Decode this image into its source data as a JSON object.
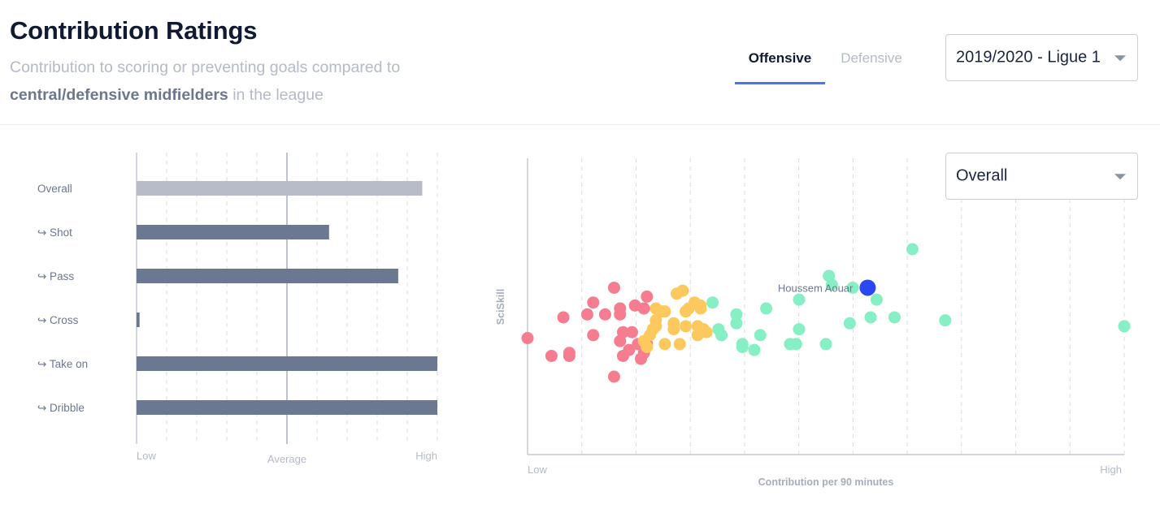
{
  "header": {
    "title": "Contribution Ratings",
    "subtitle_pre": "Contribution to scoring or preventing goals compared to",
    "subtitle_strong": "central/defensive midfielders",
    "subtitle_post": "in the league"
  },
  "tabs": [
    {
      "label": "Offensive",
      "active": true
    },
    {
      "label": "Defensive",
      "active": false
    }
  ],
  "season_select": {
    "value": "2019/2020 - Ligue 1"
  },
  "metric_select": {
    "value": "Overall"
  },
  "colors": {
    "overall_bar": "#b7bcc8",
    "sub_bar": "#6b7891",
    "low": "#f67d8f",
    "mid": "#fdc95f",
    "high": "#86efc3",
    "highlight": "#2c46f0"
  },
  "chart_data": [
    {
      "type": "bar",
      "orientation": "horizontal",
      "categories": [
        "Overall",
        "↪ Shot",
        "↪ Pass",
        "↪ Cross",
        "↪ Take on",
        "↪ Dribble"
      ],
      "values": [
        0.95,
        0.64,
        0.87,
        0.01,
        1.0,
        1.0
      ],
      "xlim": [
        0,
        1
      ],
      "reference_value": 0.5,
      "x_ticks": {
        "low": "Low",
        "average": "Average",
        "high": "High"
      },
      "grid": true
    },
    {
      "type": "scatter",
      "xlabel": "Contribution per 90 minutes",
      "ylabel": "SciSkill",
      "x_ticks": {
        "low": "Low",
        "high": "High"
      },
      "xlim": [
        0,
        1
      ],
      "ylim": [
        0,
        1
      ],
      "grid": true,
      "highlight": {
        "name": "Houssem Aouar",
        "x": 0.57,
        "y": 0.56
      },
      "points": [
        {
          "x": 0.0,
          "y": 0.39,
          "g": "low"
        },
        {
          "x": 0.04,
          "y": 0.33,
          "g": "low"
        },
        {
          "x": 0.06,
          "y": 0.46,
          "g": "low"
        },
        {
          "x": 0.07,
          "y": 0.33,
          "g": "low"
        },
        {
          "x": 0.07,
          "y": 0.34,
          "g": "low"
        },
        {
          "x": 0.1,
          "y": 0.47,
          "g": "low"
        },
        {
          "x": 0.11,
          "y": 0.51,
          "g": "low"
        },
        {
          "x": 0.11,
          "y": 0.4,
          "g": "low"
        },
        {
          "x": 0.13,
          "y": 0.47,
          "g": "low"
        },
        {
          "x": 0.145,
          "y": 0.56,
          "g": "low"
        },
        {
          "x": 0.145,
          "y": 0.26,
          "g": "low"
        },
        {
          "x": 0.155,
          "y": 0.49,
          "g": "low"
        },
        {
          "x": 0.155,
          "y": 0.47,
          "g": "low"
        },
        {
          "x": 0.155,
          "y": 0.38,
          "g": "low"
        },
        {
          "x": 0.16,
          "y": 0.41,
          "g": "low"
        },
        {
          "x": 0.16,
          "y": 0.33,
          "g": "low"
        },
        {
          "x": 0.17,
          "y": 0.35,
          "g": "low"
        },
        {
          "x": 0.175,
          "y": 0.41,
          "g": "low"
        },
        {
          "x": 0.18,
          "y": 0.5,
          "g": "low"
        },
        {
          "x": 0.185,
          "y": 0.37,
          "g": "low"
        },
        {
          "x": 0.19,
          "y": 0.32,
          "g": "low"
        },
        {
          "x": 0.195,
          "y": 0.34,
          "g": "low"
        },
        {
          "x": 0.195,
          "y": 0.49,
          "g": "low"
        },
        {
          "x": 0.2,
          "y": 0.53,
          "g": "low"
        },
        {
          "x": 0.2,
          "y": 0.37,
          "g": "low"
        },
        {
          "x": 0.195,
          "y": 0.38,
          "g": "mid"
        },
        {
          "x": 0.2,
          "y": 0.36,
          "g": "mid"
        },
        {
          "x": 0.205,
          "y": 0.4,
          "g": "mid"
        },
        {
          "x": 0.21,
          "y": 0.42,
          "g": "mid"
        },
        {
          "x": 0.215,
          "y": 0.49,
          "g": "mid"
        },
        {
          "x": 0.215,
          "y": 0.45,
          "g": "mid"
        },
        {
          "x": 0.215,
          "y": 0.43,
          "g": "mid"
        },
        {
          "x": 0.225,
          "y": 0.48,
          "g": "mid"
        },
        {
          "x": 0.23,
          "y": 0.48,
          "g": "mid"
        },
        {
          "x": 0.23,
          "y": 0.37,
          "g": "mid"
        },
        {
          "x": 0.245,
          "y": 0.44,
          "g": "mid"
        },
        {
          "x": 0.245,
          "y": 0.42,
          "g": "mid"
        },
        {
          "x": 0.25,
          "y": 0.54,
          "g": "mid"
        },
        {
          "x": 0.255,
          "y": 0.37,
          "g": "mid"
        },
        {
          "x": 0.26,
          "y": 0.55,
          "g": "mid"
        },
        {
          "x": 0.265,
          "y": 0.48,
          "g": "mid"
        },
        {
          "x": 0.265,
          "y": 0.43,
          "g": "mid"
        },
        {
          "x": 0.27,
          "y": 0.49,
          "g": "mid"
        },
        {
          "x": 0.28,
          "y": 0.51,
          "g": "mid"
        },
        {
          "x": 0.285,
          "y": 0.4,
          "g": "mid"
        },
        {
          "x": 0.285,
          "y": 0.43,
          "g": "mid"
        },
        {
          "x": 0.29,
          "y": 0.49,
          "g": "mid"
        },
        {
          "x": 0.29,
          "y": 0.41,
          "g": "mid"
        },
        {
          "x": 0.29,
          "y": 0.5,
          "g": "mid"
        },
        {
          "x": 0.295,
          "y": 0.42,
          "g": "mid"
        },
        {
          "x": 0.3,
          "y": 0.41,
          "g": "mid"
        },
        {
          "x": 0.31,
          "y": 0.51,
          "g": "high"
        },
        {
          "x": 0.32,
          "y": 0.42,
          "g": "high"
        },
        {
          "x": 0.325,
          "y": 0.4,
          "g": "high"
        },
        {
          "x": 0.35,
          "y": 0.44,
          "g": "high"
        },
        {
          "x": 0.35,
          "y": 0.47,
          "g": "high"
        },
        {
          "x": 0.36,
          "y": 0.37,
          "g": "high"
        },
        {
          "x": 0.36,
          "y": 0.36,
          "g": "high"
        },
        {
          "x": 0.38,
          "y": 0.35,
          "g": "high"
        },
        {
          "x": 0.39,
          "y": 0.4,
          "g": "high"
        },
        {
          "x": 0.4,
          "y": 0.49,
          "g": "high"
        },
        {
          "x": 0.44,
          "y": 0.37,
          "g": "high"
        },
        {
          "x": 0.45,
          "y": 0.37,
          "g": "high"
        },
        {
          "x": 0.455,
          "y": 0.42,
          "g": "high"
        },
        {
          "x": 0.455,
          "y": 0.52,
          "g": "high"
        },
        {
          "x": 0.5,
          "y": 0.37,
          "g": "high"
        },
        {
          "x": 0.505,
          "y": 0.6,
          "g": "high"
        },
        {
          "x": 0.51,
          "y": 0.57,
          "g": "high"
        },
        {
          "x": 0.54,
          "y": 0.44,
          "g": "high"
        },
        {
          "x": 0.545,
          "y": 0.56,
          "g": "high"
        },
        {
          "x": 0.575,
          "y": 0.46,
          "g": "high"
        },
        {
          "x": 0.585,
          "y": 0.52,
          "g": "high"
        },
        {
          "x": 0.615,
          "y": 0.46,
          "g": "high"
        },
        {
          "x": 0.645,
          "y": 0.69,
          "g": "high"
        },
        {
          "x": 0.7,
          "y": 0.45,
          "g": "high"
        },
        {
          "x": 1.0,
          "y": 0.43,
          "g": "high"
        }
      ]
    }
  ]
}
